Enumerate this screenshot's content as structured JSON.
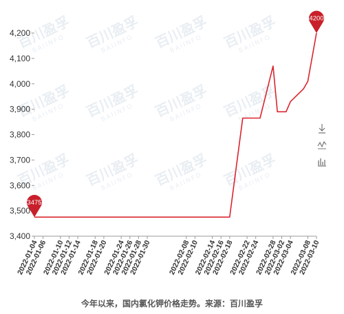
{
  "chart_data": {
    "type": "line",
    "title": "",
    "xlabel": "",
    "ylabel": "",
    "ylim": [
      3400,
      4200
    ],
    "yticks": [
      "3,400",
      "3,500",
      "3,600",
      "3,700",
      "3,800",
      "3,900",
      "4,000",
      "4,100",
      "4,200"
    ],
    "x_tick_labels": [
      "2022-01-04",
      "2022-01-06",
      "2022-01-10",
      "2022-01-12",
      "2022-01-14",
      "2022-01-18",
      "2022-01-20",
      "2022-01-24",
      "2022-01-26",
      "2022-01-28",
      "2022-01-30",
      "2022-02-08",
      "2022-02-10",
      "2022-02-14",
      "2022-02-16",
      "2022-02-18",
      "2022-02-22",
      "2022-02-24",
      "2022-02-28",
      "2022-03-02",
      "2022-03-04",
      "2022-03-08",
      "2022-03-10"
    ],
    "series": [
      {
        "color": "#d9232c",
        "points": [
          {
            "x": "2022-01-04",
            "y": 3475
          },
          {
            "x": "2022-02-18",
            "y": 3475
          },
          {
            "x": "2022-02-21",
            "y": 3865
          },
          {
            "x": "2022-02-25",
            "y": 3865
          },
          {
            "x": "2022-02-28",
            "y": 4070
          },
          {
            "x": "2022-03-01",
            "y": 3890
          },
          {
            "x": "2022-03-02",
            "y": 3890
          },
          {
            "x": "2022-03-03",
            "y": 3890
          },
          {
            "x": "2022-03-04",
            "y": 3930
          },
          {
            "x": "2022-03-07",
            "y": 3980
          },
          {
            "x": "2022-03-08",
            "y": 4010
          },
          {
            "x": "2022-03-10",
            "y": 4200
          }
        ]
      }
    ],
    "markers": [
      {
        "label": "3475",
        "x": "2022-01-04",
        "y": 3475
      },
      {
        "label": "4200",
        "x": "2022-03-10",
        "y": 4200
      }
    ],
    "grid": false,
    "watermark": "百川盈孚 BAIINFO"
  },
  "caption": "今年以来，国内氯化钾价格走势。来源：百川盈孚",
  "toolbar": {
    "download_icon": "download-icon",
    "line_icon": "line-chart-icon",
    "bar_icon": "bar-chart-icon"
  }
}
